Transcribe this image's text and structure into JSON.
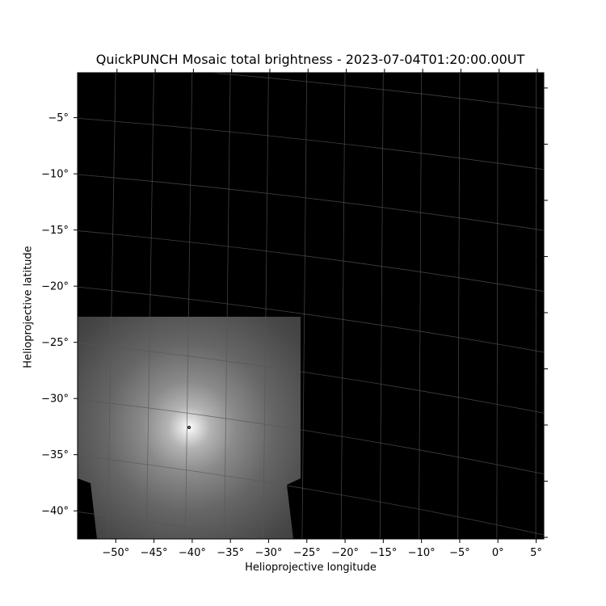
{
  "chart_data": {
    "type": "heatmap",
    "title": "QuickPUNCH Mosaic total brightness - 2023-07-04T01:20:00.00UT",
    "xlabel": "Helioprojective longitude",
    "ylabel": "Helioprojective latitude",
    "x_ticks": [
      "−50°",
      "−45°",
      "−40°",
      "−35°",
      "−30°",
      "−25°",
      "−20°",
      "−15°",
      "−10°",
      "−5°",
      "0°",
      "5°"
    ],
    "x_tick_values": [
      -50,
      -45,
      -40,
      -35,
      -30,
      -25,
      -20,
      -15,
      -10,
      -5,
      0,
      5
    ],
    "y_ticks": [
      "−5°",
      "−10°",
      "−15°",
      "−20°",
      "−25°",
      "−30°",
      "−35°",
      "−40°"
    ],
    "y_tick_values": [
      -5,
      -10,
      -15,
      -20,
      -25,
      -30,
      -35,
      -40
    ],
    "xlim": [
      -55,
      6
    ],
    "ylim": [
      -42.5,
      -1
    ],
    "grid": true,
    "colormap": "gray",
    "background": "#000000",
    "sun_center": {
      "lon": -41,
      "lat": -33
    }
  }
}
